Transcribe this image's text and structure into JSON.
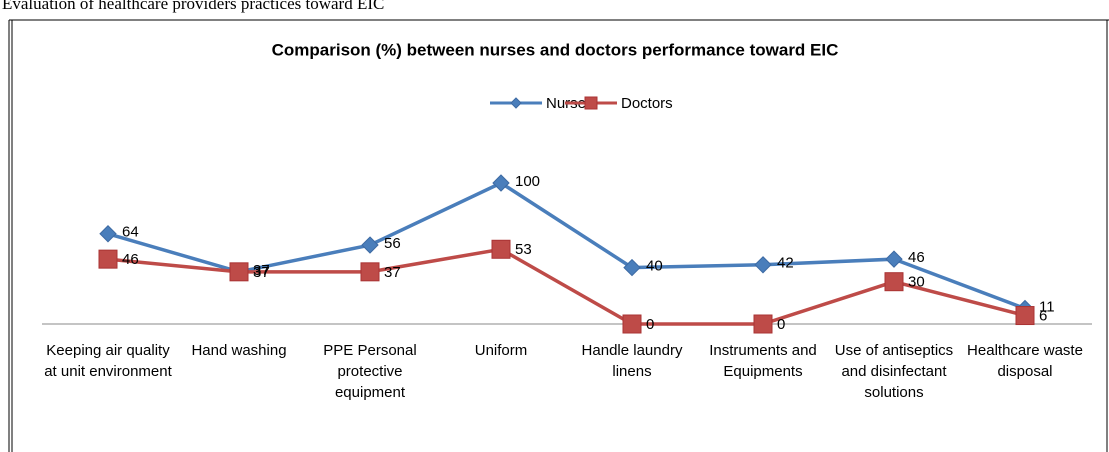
{
  "caption": "Evaluation of healthcare providers practices toward EIC",
  "chart_data": {
    "type": "line",
    "title": "Comparison (%) between nurses and doctors performance toward EIC",
    "categories": [
      "Keeping air quality at unit environment",
      "Hand washing",
      "PPE Personal protective equipment",
      "Uniform",
      "Handle laundry linens",
      "Instruments and Equipments",
      "Use of antiseptics and disinfectant solutions",
      "Healthcare waste disposal"
    ],
    "series": [
      {
        "name": "Nurses",
        "color": "#4a7ebb",
        "values": [
          64,
          37,
          56,
          100,
          40,
          42,
          46,
          11
        ]
      },
      {
        "name": "Doctors",
        "color": "#be4b48",
        "values": [
          46,
          37,
          37,
          53,
          0,
          0,
          30,
          6
        ]
      }
    ],
    "ylim": [
      0,
      100
    ]
  }
}
